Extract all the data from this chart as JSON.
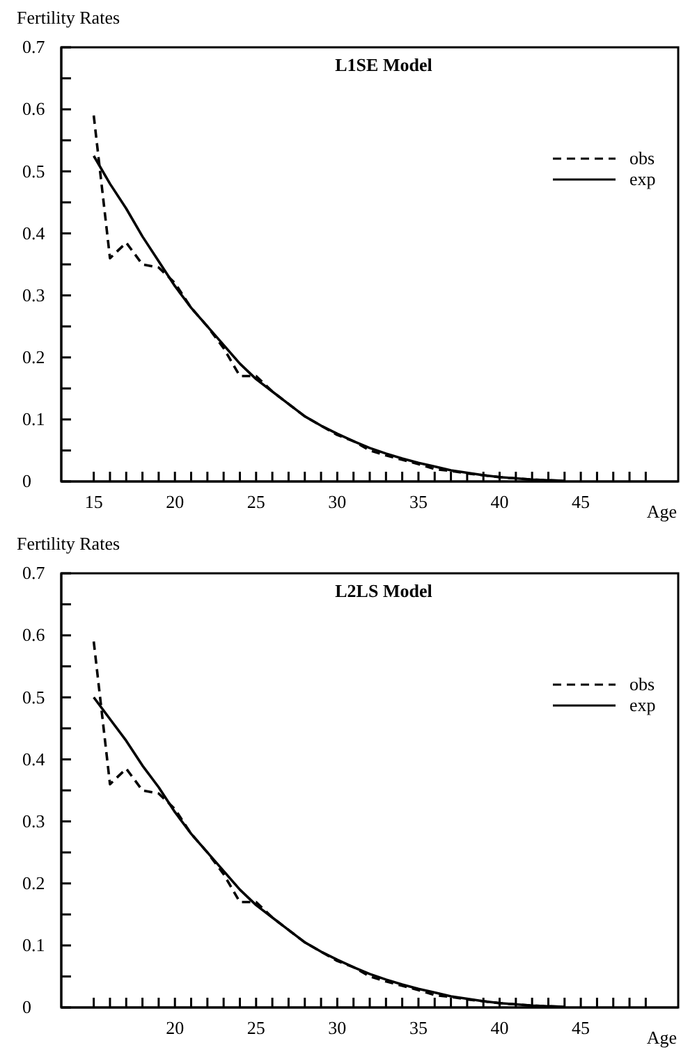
{
  "chart_data": [
    {
      "type": "line",
      "title": "L1SE Model",
      "ylabel": "Fertility Rates",
      "xlabel": "Age",
      "legend": "top right",
      "x": [
        15,
        16,
        17,
        18,
        19,
        20,
        21,
        22,
        23,
        24,
        25,
        26,
        27,
        28,
        29,
        30,
        31,
        32,
        33,
        34,
        35,
        36,
        37,
        38,
        39,
        40,
        41,
        42,
        43,
        44
      ],
      "series": [
        {
          "name": "obs",
          "color": "#000000",
          "line_style": "dashed",
          "values": [
            0.59,
            0.36,
            0.385,
            0.35,
            0.345,
            0.32,
            0.28,
            0.25,
            0.215,
            0.17,
            0.17,
            0.145,
            0.125,
            0.105,
            0.09,
            0.075,
            0.065,
            0.05,
            0.042,
            0.035,
            0.028,
            0.02,
            0.017,
            0.013,
            0.01,
            0.007,
            0.005,
            0.003,
            0.002,
            0.001
          ]
        },
        {
          "name": "exp",
          "color": "#000000",
          "line_style": "solid",
          "values": [
            0.525,
            0.48,
            0.44,
            0.395,
            0.355,
            0.315,
            0.28,
            0.25,
            0.22,
            0.19,
            0.165,
            0.145,
            0.125,
            0.105,
            0.09,
            0.077,
            0.065,
            0.054,
            0.045,
            0.037,
            0.03,
            0.024,
            0.018,
            0.014,
            0.01,
            0.007,
            0.005,
            0.003,
            0.002,
            0.001
          ]
        }
      ],
      "xlim": [
        13,
        51
      ],
      "ylim": [
        0,
        0.7
      ],
      "xticks": [
        15,
        {
          "value": 16,
          "label": null
        },
        {
          "value": 17,
          "label": null
        },
        {
          "value": 18,
          "label": null
        },
        {
          "value": 19,
          "label": null
        },
        20,
        {
          "value": 21,
          "label": null
        },
        {
          "value": 22,
          "label": null
        },
        {
          "value": 23,
          "label": null
        },
        {
          "value": 24,
          "label": null
        },
        25,
        {
          "value": 26,
          "label": null
        },
        {
          "value": 27,
          "label": null
        },
        {
          "value": 28,
          "label": null
        },
        {
          "value": 29,
          "label": null
        },
        30,
        {
          "value": 31,
          "label": null
        },
        {
          "value": 32,
          "label": null
        },
        {
          "value": 33,
          "label": null
        },
        {
          "value": 34,
          "label": null
        },
        35,
        {
          "value": 36,
          "label": null
        },
        {
          "value": 37,
          "label": null
        },
        {
          "value": 38,
          "label": null
        },
        {
          "value": 39,
          "label": null
        },
        40,
        {
          "value": 41,
          "label": null
        },
        {
          "value": 42,
          "label": null
        },
        {
          "value": 43,
          "label": null
        },
        {
          "value": 44,
          "label": null
        },
        45,
        {
          "value": 46,
          "label": null
        },
        {
          "value": 47,
          "label": null
        },
        {
          "value": 48,
          "label": null
        },
        {
          "value": 49,
          "label": null
        }
      ],
      "yticks": [
        0,
        {
          "value": 0.05,
          "label": null
        },
        0.1,
        {
          "value": 0.15,
          "label": null
        },
        0.2,
        {
          "value": 0.25,
          "label": null
        },
        0.3,
        {
          "value": 0.35,
          "label": null
        },
        0.4,
        {
          "value": 0.45,
          "label": null
        },
        0.5,
        {
          "value": 0.55,
          "label": null
        },
        0.6,
        {
          "value": 0.65,
          "label": null
        },
        0.7
      ]
    },
    {
      "type": "line",
      "title": "L2LS Model",
      "ylabel": "Fertility Rates",
      "xlabel": "Age",
      "legend": "top right",
      "x": [
        15,
        16,
        17,
        18,
        19,
        20,
        21,
        22,
        23,
        24,
        25,
        26,
        27,
        28,
        29,
        30,
        31,
        32,
        33,
        34,
        35,
        36,
        37,
        38,
        39,
        40,
        41,
        42,
        43,
        44
      ],
      "series": [
        {
          "name": "obs",
          "color": "#000000",
          "line_style": "dashed",
          "values": [
            0.59,
            0.36,
            0.385,
            0.35,
            0.345,
            0.32,
            0.28,
            0.25,
            0.215,
            0.17,
            0.17,
            0.145,
            0.125,
            0.105,
            0.09,
            0.075,
            0.065,
            0.05,
            0.042,
            0.035,
            0.028,
            0.02,
            0.017,
            0.013,
            0.01,
            0.007,
            0.005,
            0.003,
            0.002,
            0.001
          ]
        },
        {
          "name": "exp",
          "color": "#000000",
          "line_style": "solid",
          "values": [
            0.5,
            0.465,
            0.43,
            0.39,
            0.355,
            0.315,
            0.28,
            0.25,
            0.22,
            0.19,
            0.165,
            0.145,
            0.125,
            0.105,
            0.09,
            0.077,
            0.065,
            0.054,
            0.045,
            0.037,
            0.03,
            0.024,
            0.018,
            0.014,
            0.01,
            0.007,
            0.005,
            0.003,
            0.002,
            0.001
          ]
        }
      ],
      "xlim": [
        13,
        51
      ],
      "ylim": [
        0,
        0.7
      ],
      "xticks": [
        {
          "value": 15,
          "label": null
        },
        {
          "value": 16,
          "label": null
        },
        {
          "value": 17,
          "label": null
        },
        {
          "value": 18,
          "label": null
        },
        {
          "value": 19,
          "label": null
        },
        20,
        {
          "value": 21,
          "label": null
        },
        {
          "value": 22,
          "label": null
        },
        {
          "value": 23,
          "label": null
        },
        {
          "value": 24,
          "label": null
        },
        25,
        {
          "value": 26,
          "label": null
        },
        {
          "value": 27,
          "label": null
        },
        {
          "value": 28,
          "label": null
        },
        {
          "value": 29,
          "label": null
        },
        30,
        {
          "value": 31,
          "label": null
        },
        {
          "value": 32,
          "label": null
        },
        {
          "value": 33,
          "label": null
        },
        {
          "value": 34,
          "label": null
        },
        35,
        {
          "value": 36,
          "label": null
        },
        {
          "value": 37,
          "label": null
        },
        {
          "value": 38,
          "label": null
        },
        {
          "value": 39,
          "label": null
        },
        40,
        {
          "value": 41,
          "label": null
        },
        {
          "value": 42,
          "label": null
        },
        {
          "value": 43,
          "label": null
        },
        {
          "value": 44,
          "label": null
        },
        45,
        {
          "value": 46,
          "label": null
        },
        {
          "value": 47,
          "label": null
        },
        {
          "value": 48,
          "label": null
        },
        {
          "value": 49,
          "label": null
        }
      ],
      "yticks": [
        0,
        {
          "value": 0.05,
          "label": null
        },
        0.1,
        {
          "value": 0.15,
          "label": null
        },
        0.2,
        {
          "value": 0.25,
          "label": null
        },
        0.3,
        {
          "value": 0.35,
          "label": null
        },
        0.4,
        {
          "value": 0.45,
          "label": null
        },
        0.5,
        {
          "value": 0.55,
          "label": null
        },
        0.6,
        {
          "value": 0.65,
          "label": null
        },
        0.7
      ]
    }
  ]
}
